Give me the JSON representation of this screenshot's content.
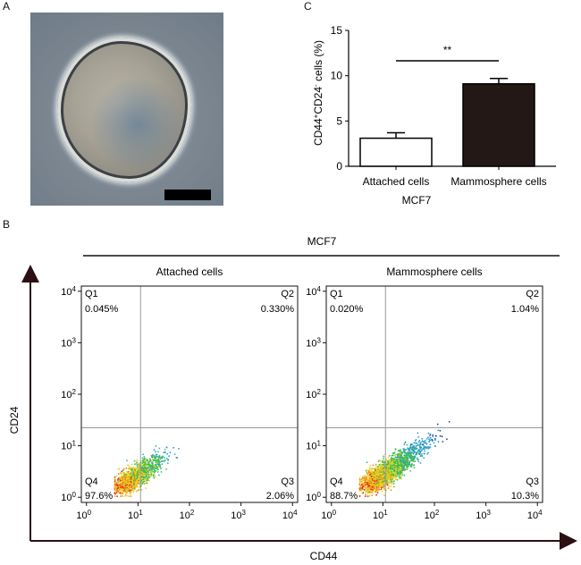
{
  "panels": {
    "a": "A",
    "b": "B",
    "c": "C"
  },
  "chart_data": {
    "type": "bar",
    "categories": [
      "Attached cells",
      "Mammosphere cells"
    ],
    "values": [
      3.1,
      9.1
    ],
    "errors": [
      0.6,
      0.6
    ],
    "colors": [
      "#ffffff",
      "#231815"
    ],
    "ylim": [
      0,
      15
    ],
    "yticks": [
      "0",
      "5",
      "10",
      "15"
    ],
    "ylabel_main": "CD44",
    "ylabel_sup1": "+",
    "ylabel_mid": "CD24",
    "ylabel_sup2": "-",
    "ylabel_tail": " cells (%)",
    "xlabel": "MCF7",
    "significance": "**"
  },
  "flow": {
    "header": "MCF7",
    "xlabel": "CD44",
    "ylabel": "CD24",
    "tick_base": "10",
    "tick_exponents": [
      "0",
      "1",
      "2",
      "3",
      "4"
    ],
    "plots": [
      {
        "title": "Attached cells",
        "quadrants": {
          "q1": "Q1",
          "q2": "Q2",
          "q3": "Q3",
          "q4": "Q4"
        },
        "values": {
          "q1": "0.045%",
          "q2": "0.330%",
          "q3": "2.06%",
          "q4": "97.6%"
        }
      },
      {
        "title": "Mammosphere cells",
        "quadrants": {
          "q1": "Q1",
          "q2": "Q2",
          "q3": "Q3",
          "q4": "Q4"
        },
        "values": {
          "q1": "0.020%",
          "q2": "1.04%",
          "q3": "10.3%",
          "q4": "88.7%"
        }
      }
    ]
  }
}
